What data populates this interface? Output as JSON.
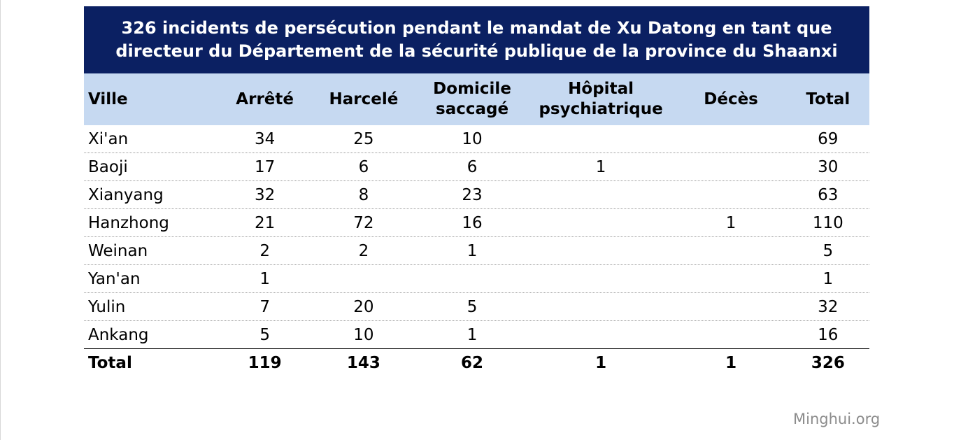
{
  "chart_data": {
    "type": "table",
    "title_lines": [
      "326 incidents de persécution pendant le mandat de Xu Datong en tant que",
      "directeur du Département de la sécurité publique de la province du Shaanxi"
    ],
    "columns": [
      [
        "Ville"
      ],
      [
        "Arrêté"
      ],
      [
        "Harcelé"
      ],
      [
        "Domicile",
        "saccagé"
      ],
      [
        "Hôpital",
        "psychiatrique"
      ],
      [
        "Décès"
      ],
      [
        "Total"
      ]
    ],
    "rows": [
      [
        "Xi'an",
        "34",
        "25",
        "10",
        "",
        "",
        "69"
      ],
      [
        "Baoji",
        "17",
        "6",
        "6",
        "1",
        "",
        "30"
      ],
      [
        "Xianyang",
        "32",
        "8",
        "23",
        "",
        "",
        "63"
      ],
      [
        "Hanzhong",
        "21",
        "72",
        "16",
        "",
        "1",
        "110"
      ],
      [
        "Weinan",
        "2",
        "2",
        "1",
        "",
        "",
        "5"
      ],
      [
        "Yan'an",
        "1",
        "",
        "",
        "",
        "",
        "1"
      ],
      [
        "Yulin",
        "7",
        "20",
        "5",
        "",
        "",
        "32"
      ],
      [
        "Ankang",
        "5",
        "10",
        "1",
        "",
        "",
        "16"
      ]
    ],
    "total_row": [
      "Total",
      "119",
      "143",
      "62",
      "1",
      "1",
      "326"
    ]
  },
  "footer": {
    "credit": "Minghui.org"
  },
  "colors": {
    "title_band": "#0b2062",
    "header_band": "#c6d9f1",
    "credit": "#8c8c8c"
  }
}
